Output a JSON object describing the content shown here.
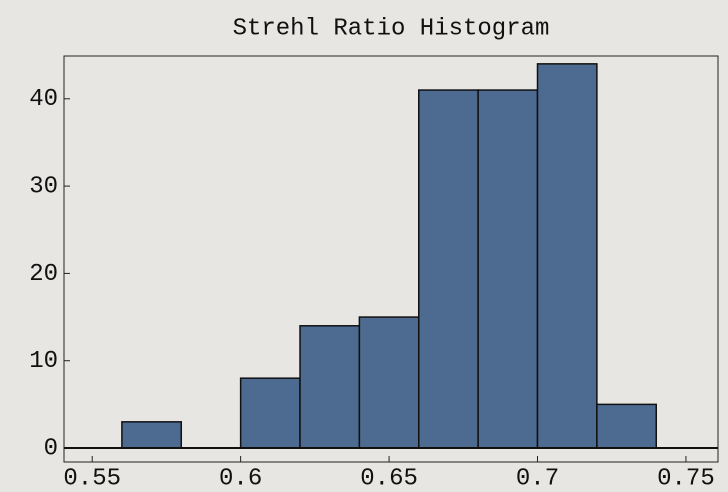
{
  "chart_data": {
    "type": "histogram",
    "title": "Strehl Ratio Histogram",
    "bins": [
      0.56,
      0.58,
      0.6,
      0.62,
      0.64,
      0.66,
      0.68,
      0.7,
      0.72,
      0.74
    ],
    "values": [
      3,
      0,
      8,
      14,
      15,
      41,
      41,
      44,
      5
    ],
    "color": "#4d6a91",
    "xlim": [
      0.5405,
      0.7608
    ],
    "xticks": [
      0.55,
      0.6,
      0.65,
      0.7,
      0.75
    ],
    "ylim": [
      -1.6,
      44.9
    ],
    "yticks": [
      0,
      10,
      20,
      30,
      40
    ]
  }
}
